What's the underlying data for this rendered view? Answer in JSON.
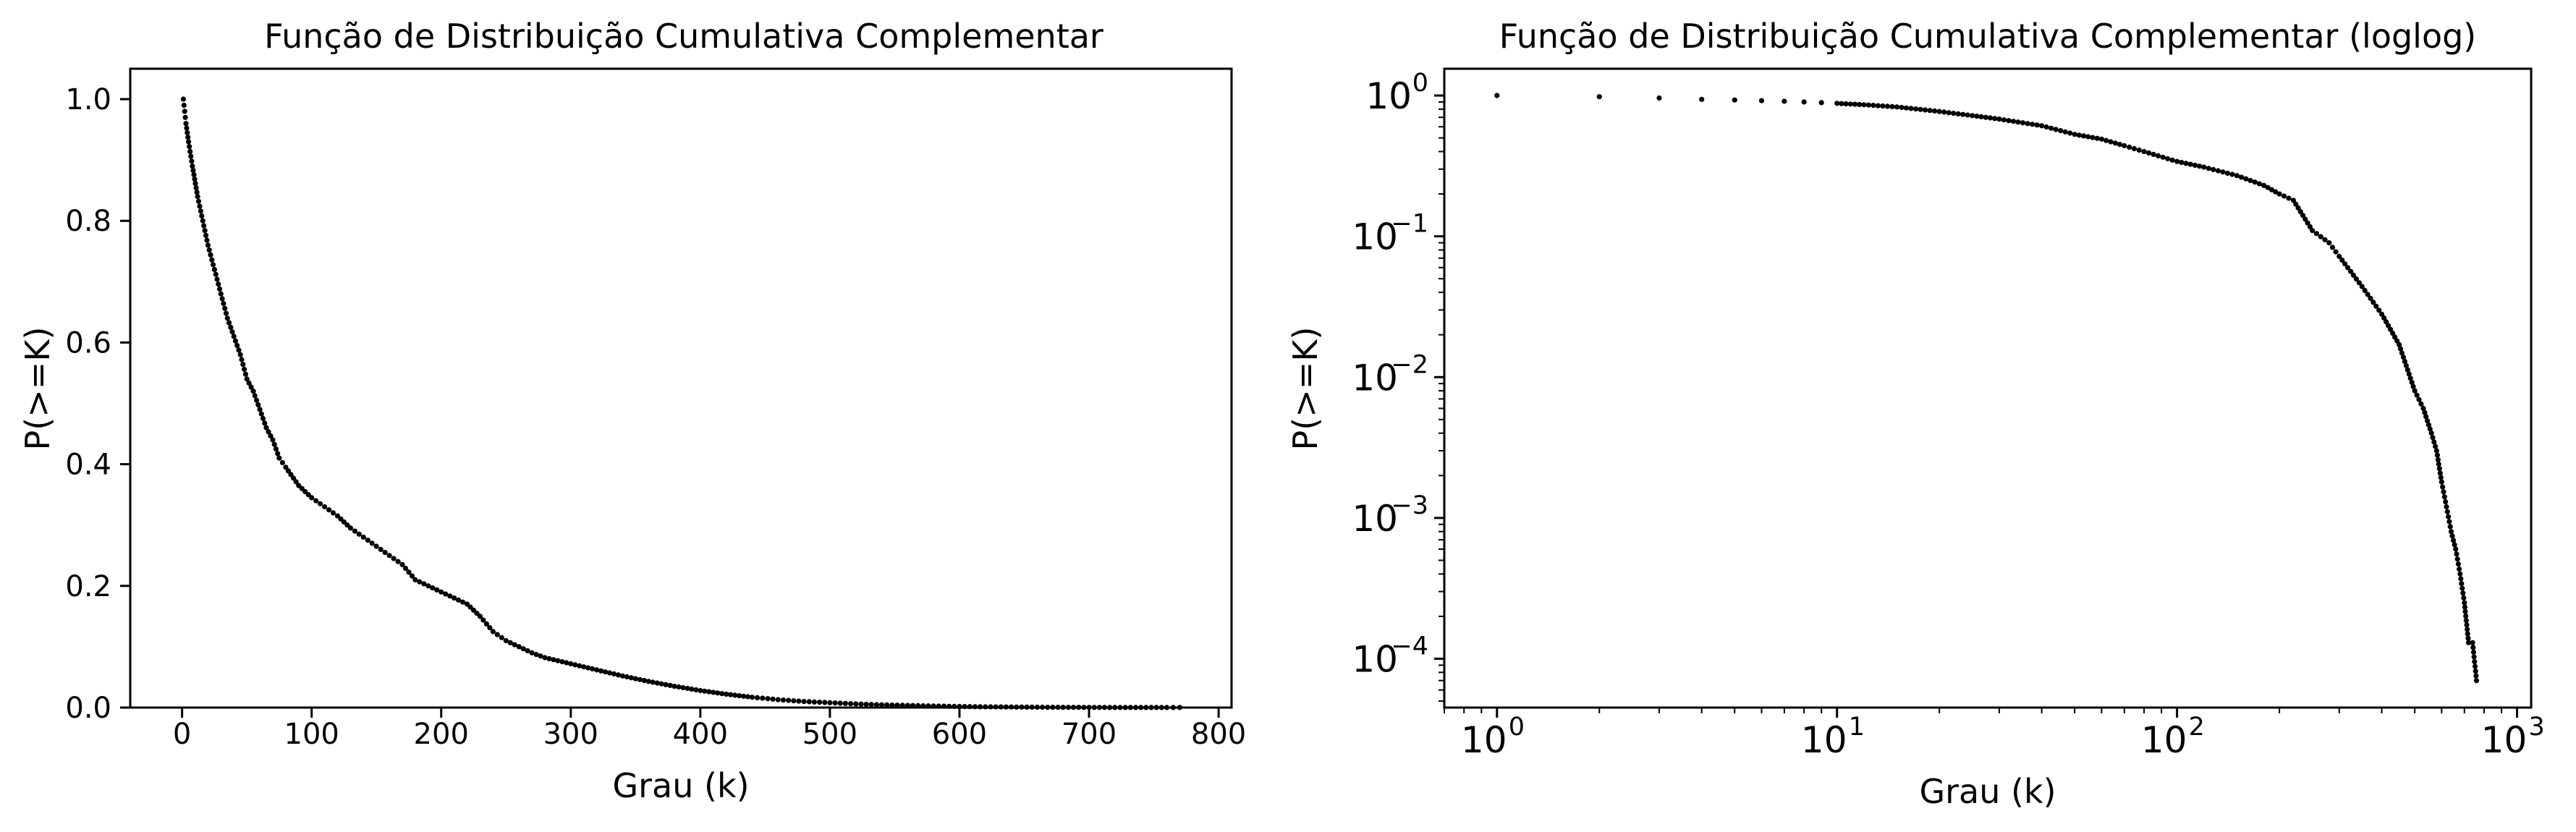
{
  "chart_data": [
    {
      "type": "scatter",
      "title": "Função de Distribuição Cumulativa Complementar",
      "xlabel": "Grau (k)",
      "ylabel": "P(>=K)",
      "xlim": [
        -40,
        810
      ],
      "ylim": [
        0.0,
        1.05
      ],
      "xscale": "linear",
      "yscale": "linear",
      "grid": false,
      "marker_color": "#000000",
      "xticks": [
        0,
        100,
        200,
        300,
        400,
        500,
        600,
        700,
        800
      ],
      "xtick_labels": [
        "0",
        "100",
        "200",
        "300",
        "400",
        "500",
        "600",
        "700",
        "800"
      ],
      "yticks": [
        0.0,
        0.2,
        0.4,
        0.6,
        0.8,
        1.0
      ],
      "ytick_labels": [
        "0.0",
        "0.2",
        "0.4",
        "0.6",
        "0.8",
        "1.0"
      ],
      "x": [
        1,
        2,
        3,
        5,
        8,
        12,
        16,
        20,
        25,
        30,
        35,
        40,
        45,
        50,
        55,
        60,
        65,
        70,
        75,
        80,
        90,
        100,
        110,
        120,
        130,
        140,
        150,
        160,
        170,
        180,
        190,
        200,
        210,
        220,
        230,
        240,
        250,
        260,
        270,
        280,
        300,
        320,
        340,
        360,
        380,
        400,
        420,
        440,
        460,
        480,
        500,
        520,
        540,
        560,
        580,
        600,
        620,
        640,
        660,
        680,
        700,
        720,
        740,
        760,
        770
      ],
      "y": [
        1.0,
        0.98,
        0.96,
        0.93,
        0.89,
        0.84,
        0.8,
        0.76,
        0.72,
        0.68,
        0.64,
        0.61,
        0.58,
        0.54,
        0.52,
        0.49,
        0.46,
        0.44,
        0.41,
        0.395,
        0.365,
        0.345,
        0.33,
        0.315,
        0.295,
        0.28,
        0.265,
        0.25,
        0.235,
        0.21,
        0.2,
        0.19,
        0.18,
        0.17,
        0.15,
        0.125,
        0.11,
        0.1,
        0.09,
        0.082,
        0.072,
        0.062,
        0.052,
        0.043,
        0.035,
        0.028,
        0.022,
        0.017,
        0.013,
        0.01,
        0.008,
        0.006,
        0.0045,
        0.0035,
        0.0025,
        0.0018,
        0.0012,
        0.0009,
        0.0006,
        0.0004,
        0.00025,
        0.00015,
        0.0001,
        7e-05,
        7e-05
      ]
    },
    {
      "type": "scatter",
      "title": "Função de Distribuição Cumulativa Complementar (loglog)",
      "xlabel": "Grau (k)",
      "ylabel": "P(>=K)",
      "xlim": [
        0.7,
        1100
      ],
      "ylim": [
        4.5e-05,
        1.55
      ],
      "xscale": "log",
      "yscale": "log",
      "grid": false,
      "marker_color": "#000000",
      "xticks": [
        1,
        10,
        100,
        1000
      ],
      "xtick_labels": [
        {
          "base": "10",
          "exp": "0"
        },
        {
          "base": "10",
          "exp": "1"
        },
        {
          "base": "10",
          "exp": "2"
        },
        {
          "base": "10",
          "exp": "3"
        }
      ],
      "yticks": [
        0.0001,
        0.001,
        0.01,
        0.1,
        1
      ],
      "ytick_labels": [
        {
          "base": "10",
          "exp": "−4"
        },
        {
          "base": "10",
          "exp": "−3"
        },
        {
          "base": "10",
          "exp": "−2"
        },
        {
          "base": "10",
          "exp": "−1"
        },
        {
          "base": "10",
          "exp": "0"
        }
      ],
      "x": [
        1,
        2,
        3,
        4,
        5,
        6,
        7,
        8,
        9,
        10,
        12,
        15,
        20,
        25,
        30,
        40,
        50,
        60,
        70,
        80,
        100,
        120,
        150,
        180,
        200,
        220,
        250,
        280,
        300,
        350,
        400,
        450,
        500,
        530,
        560,
        580,
        600,
        620,
        640,
        660,
        680,
        700,
        720,
        740,
        760
      ],
      "y": [
        1.0,
        0.98,
        0.96,
        0.94,
        0.93,
        0.92,
        0.91,
        0.9,
        0.89,
        0.88,
        0.86,
        0.83,
        0.77,
        0.72,
        0.68,
        0.61,
        0.53,
        0.49,
        0.44,
        0.4,
        0.34,
        0.31,
        0.27,
        0.23,
        0.2,
        0.18,
        0.11,
        0.09,
        0.072,
        0.044,
        0.028,
        0.017,
        0.008,
        0.006,
        0.004,
        0.003,
        0.0018,
        0.0012,
        0.0008,
        0.0006,
        0.0004,
        0.00025,
        0.00013,
        0.00013,
        7e-05
      ]
    }
  ]
}
